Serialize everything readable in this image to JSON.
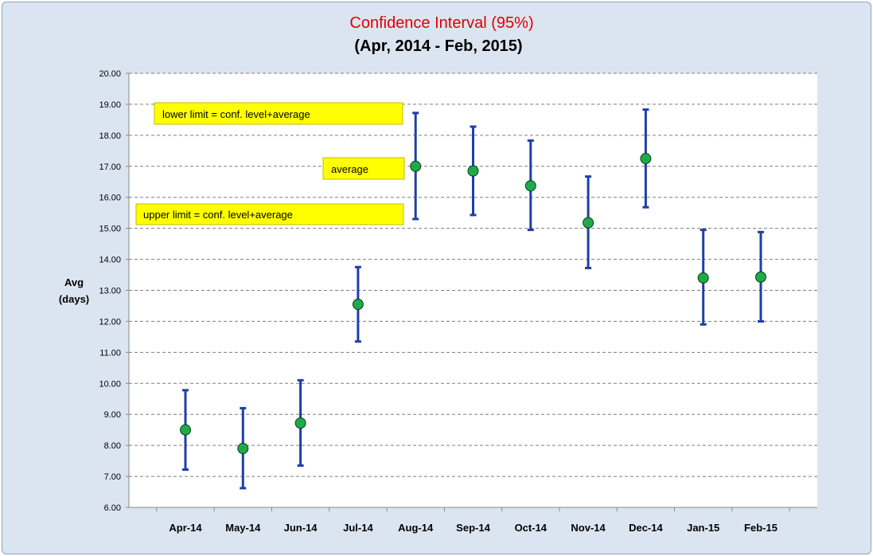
{
  "chart_data": {
    "type": "scatter",
    "title": "Confidence Interval (95%)",
    "subtitle": "(Apr, 2014 - Feb, 2015)",
    "xlabel": "",
    "ylabel": [
      "Avg",
      "(days)"
    ],
    "ylim": [
      6,
      20
    ],
    "ytick_step": 1,
    "ytick_labels": [
      "6.00",
      "7.00",
      "8.00",
      "9.00",
      "10.00",
      "11.00",
      "12.00",
      "13.00",
      "14.00",
      "15.00",
      "16.00",
      "17.00",
      "18.00",
      "19.00",
      "20.00"
    ],
    "grid": true,
    "categories": [
      "Apr-14",
      "May-14",
      "Jun-14",
      "Jul-14",
      "Aug-14",
      "Sep-14",
      "Oct-14",
      "Nov-14",
      "Dec-14",
      "Jan-15",
      "Feb-15"
    ],
    "average": [
      8.5,
      7.9,
      8.72,
      12.55,
      17.0,
      16.85,
      16.37,
      15.18,
      17.25,
      13.4,
      13.43
    ],
    "lower": [
      7.22,
      6.62,
      7.35,
      11.35,
      15.3,
      15.43,
      14.95,
      13.72,
      15.68,
      11.9,
      12.0
    ],
    "upper": [
      9.78,
      9.2,
      10.1,
      13.75,
      18.72,
      18.28,
      17.83,
      16.67,
      18.83,
      14.95,
      14.88
    ],
    "annotations": [
      "lower limit = conf. level+average",
      "average",
      "upper limit = conf. level+average"
    ],
    "colors": {
      "errorbar": "#1f3fa8",
      "marker": "#1faa4a",
      "title": "#e00000",
      "note_fill": "#ffff00",
      "note_border": "#c9b800"
    }
  }
}
